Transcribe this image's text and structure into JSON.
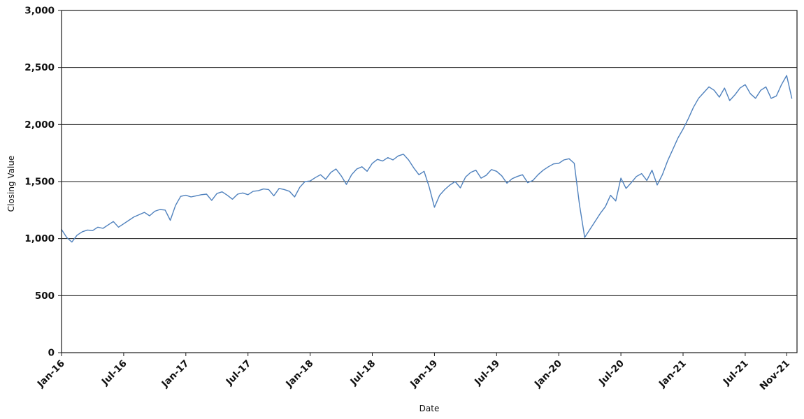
{
  "chart_data": {
    "type": "line",
    "title": "",
    "xlabel": "Date",
    "ylabel": "Closing Value",
    "legend": "none",
    "grid": "horizontal",
    "y_max": 3000,
    "y_ticks": [
      0,
      500,
      1000,
      1500,
      2000,
      2500,
      3000
    ],
    "y_tick_labels": [
      "0",
      "500",
      "1,000",
      "1,500",
      "2,000",
      "2,500",
      "3,000"
    ],
    "x_domain_months": 71,
    "x_ticks": [
      {
        "month": 0,
        "label": "Jan-16"
      },
      {
        "month": 6,
        "label": "Jul-16"
      },
      {
        "month": 12,
        "label": "Jan-17"
      },
      {
        "month": 18,
        "label": "Jul-17"
      },
      {
        "month": 24,
        "label": "Jan-18"
      },
      {
        "month": 30,
        "label": "Jul-18"
      },
      {
        "month": 36,
        "label": "Jan-19"
      },
      {
        "month": 42,
        "label": "Jul-19"
      },
      {
        "month": 48,
        "label": "Jan-20"
      },
      {
        "month": 54,
        "label": "Jul-20"
      },
      {
        "month": 60,
        "label": "Jan-21"
      },
      {
        "month": 66,
        "label": "Jul-21"
      },
      {
        "month": 70,
        "label": "Nov-21"
      }
    ],
    "series": [
      {
        "name": "Closing Value",
        "color": "#4f81bd",
        "start_month": 0,
        "month_step": 0.5,
        "values": [
          1080,
          1010,
          970,
          1030,
          1060,
          1075,
          1070,
          1100,
          1090,
          1120,
          1150,
          1100,
          1130,
          1160,
          1190,
          1210,
          1230,
          1200,
          1240,
          1255,
          1250,
          1160,
          1290,
          1370,
          1380,
          1365,
          1375,
          1385,
          1390,
          1335,
          1395,
          1410,
          1380,
          1345,
          1390,
          1400,
          1385,
          1415,
          1420,
          1435,
          1430,
          1375,
          1440,
          1430,
          1415,
          1365,
          1450,
          1500,
          1505,
          1535,
          1560,
          1520,
          1580,
          1610,
          1550,
          1475,
          1560,
          1610,
          1630,
          1590,
          1660,
          1695,
          1680,
          1710,
          1690,
          1725,
          1740,
          1690,
          1620,
          1560,
          1590,
          1450,
          1275,
          1380,
          1430,
          1470,
          1500,
          1445,
          1540,
          1580,
          1600,
          1530,
          1555,
          1605,
          1590,
          1550,
          1485,
          1525,
          1545,
          1560,
          1490,
          1510,
          1560,
          1600,
          1630,
          1655,
          1660,
          1690,
          1700,
          1660,
          1300,
          1010,
          1080,
          1150,
          1220,
          1280,
          1380,
          1330,
          1530,
          1440,
          1490,
          1545,
          1570,
          1510,
          1600,
          1470,
          1560,
          1680,
          1780,
          1880,
          1960,
          2050,
          2150,
          2230,
          2280,
          2330,
          2300,
          2240,
          2320,
          2210,
          2260,
          2320,
          2350,
          2270,
          2230,
          2300,
          2330,
          2230,
          2250,
          2350,
          2430,
          2230
        ]
      }
    ]
  },
  "colors": {
    "line": "#4f81bd",
    "grid": "#1a1a1a",
    "background": "#ffffff"
  }
}
